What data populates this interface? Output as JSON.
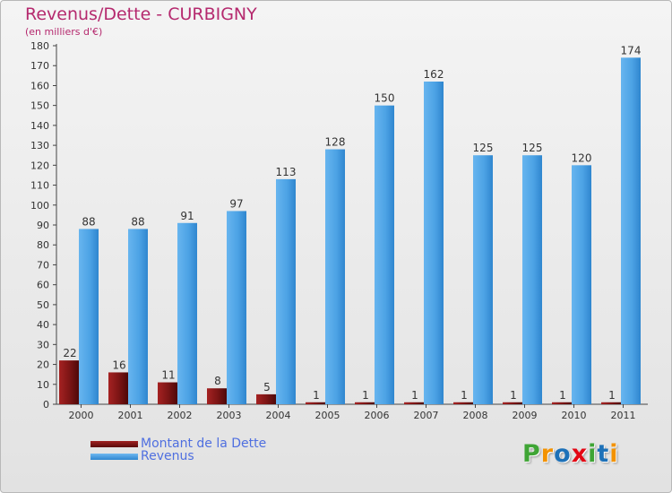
{
  "chart_data": {
    "type": "bar",
    "title": "Revenus/Dette - CURBIGNY",
    "subtitle": "(en milliers d'€)",
    "categories": [
      "2000",
      "2001",
      "2002",
      "2003",
      "2004",
      "2005",
      "2006",
      "2007",
      "2008",
      "2009",
      "2010",
      "2011"
    ],
    "series": [
      {
        "name": "Montant de la Dette",
        "color": "#7a1414",
        "values": [
          22,
          16,
          11,
          8,
          5,
          1,
          1,
          1,
          1,
          1,
          1,
          1
        ]
      },
      {
        "name": "Revenus",
        "color": "#4da3e5",
        "values": [
          88,
          88,
          91,
          97,
          113,
          128,
          150,
          162,
          125,
          125,
          120,
          174
        ]
      }
    ],
    "ylim": [
      0,
      180
    ],
    "yticks": [
      0,
      10,
      20,
      30,
      40,
      50,
      60,
      70,
      80,
      90,
      100,
      110,
      120,
      130,
      140,
      150,
      160,
      170,
      180
    ],
    "grid": false,
    "legend": "bottom-left"
  },
  "logo": {
    "letters": [
      "P",
      "r",
      "o",
      "x",
      "i",
      "t",
      "i"
    ],
    "colors": [
      "#3fa535",
      "#f39200",
      "#1d71b8",
      "#e30613",
      "#3fa535",
      "#1d71b8",
      "#f39200"
    ]
  }
}
